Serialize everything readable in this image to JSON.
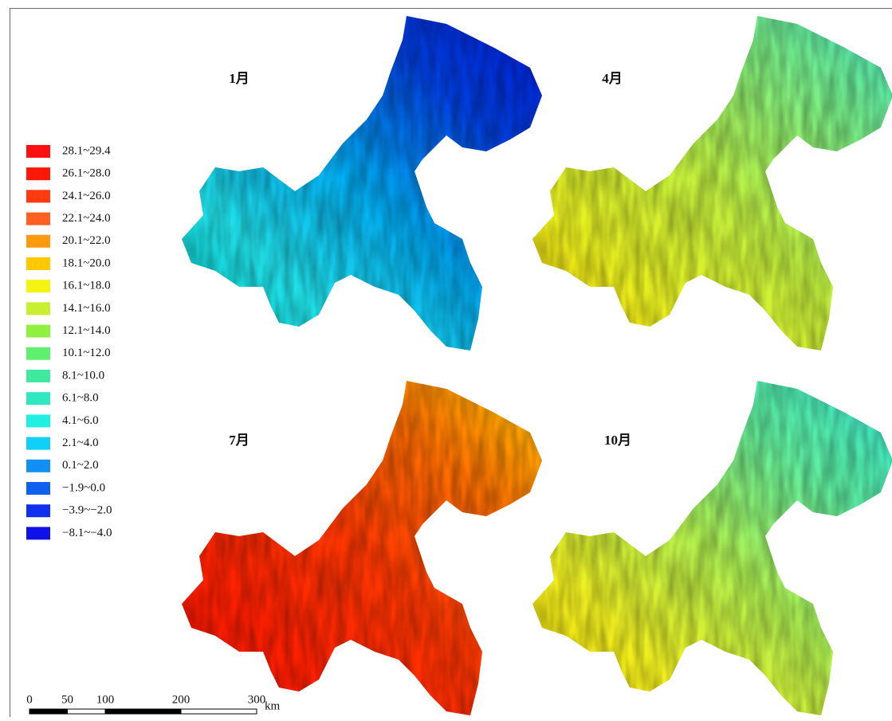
{
  "panels": [
    {
      "label": "1月",
      "colors": [
        "#00c8c0",
        "#20e0e8",
        "#00a8f0",
        "#0040e0",
        "#0018d0"
      ]
    },
    {
      "label": "4月",
      "colors": [
        "#f0c800",
        "#e8f020",
        "#c0f040",
        "#80f080",
        "#40e0c0"
      ]
    },
    {
      "label": "7月",
      "colors": [
        "#f01000",
        "#ff2000",
        "#ff3800",
        "#ff7000",
        "#ffc800"
      ]
    },
    {
      "label": "10月",
      "colors": [
        "#f0d000",
        "#f0f020",
        "#b0f050",
        "#60f0a0",
        "#30e0d0"
      ]
    }
  ],
  "legend": [
    {
      "label": "28.1~29.4",
      "color": "#ff1010"
    },
    {
      "label": "26.1~28.0",
      "color": "#ff1808"
    },
    {
      "label": "24.1~26.0",
      "color": "#ff3a10"
    },
    {
      "label": "22.1~24.0",
      "color": "#ff6020"
    },
    {
      "label": "20.1~22.0",
      "color": "#ff9a10"
    },
    {
      "label": "18.1~20.0",
      "color": "#ffc800"
    },
    {
      "label": "16.1~18.0",
      "color": "#f4f410"
    },
    {
      "label": "14.1~16.0",
      "color": "#c8f030"
    },
    {
      "label": "12.1~14.0",
      "color": "#90f040"
    },
    {
      "label": "10.1~12.0",
      "color": "#60f070"
    },
    {
      "label": "8.1~10.0",
      "color": "#40e8a0"
    },
    {
      "label": "6.1~8.0",
      "color": "#30e8c0"
    },
    {
      "label": "4.1~6.0",
      "color": "#20f0e0"
    },
    {
      "label": "2.1~4.0",
      "color": "#10d0f8"
    },
    {
      "label": "0.1~2.0",
      "color": "#1090f0"
    },
    {
      "label": "−1.9~0.0",
      "color": "#1060f0"
    },
    {
      "label": "−3.9~−2.0",
      "color": "#1030f0"
    },
    {
      "label": "−8.1~−4.0",
      "color": "#1010e8"
    }
  ],
  "scale_bar": {
    "ticks": [
      0,
      50,
      100,
      200,
      300
    ],
    "unit": "km"
  }
}
